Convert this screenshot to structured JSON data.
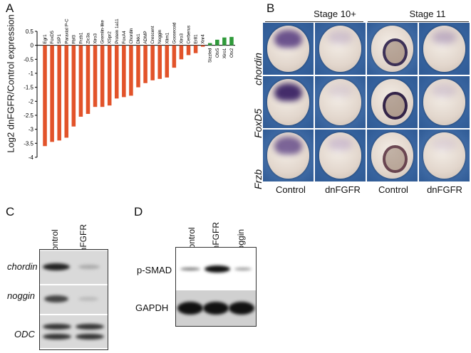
{
  "panels": {
    "a": "A",
    "b": "B",
    "c": "C",
    "d": "D"
  },
  "chart_data": {
    "type": "bar",
    "ylabel": "Log2 dnFGFR/Control expression",
    "ylim": [
      -4,
      0.5
    ],
    "yticks": [
      "0.5",
      "0",
      "-0.5",
      "-1",
      "-1.5",
      "-2",
      "-2.5",
      "-3",
      "-3.5",
      "-4"
    ],
    "categories": [
      "Egr1",
      "FoxD5",
      "SIP1",
      "Paraxial P-C",
      "Fbf3",
      "Frzb1",
      "Zic3a",
      "Xiro3",
      "Gremlin-like",
      "XSpr2",
      "Protein 1a11",
      "FoxA4",
      "Chordin",
      "Dkk1",
      "ADMP",
      "Crescent",
      "Noggin",
      "Xlim1",
      "Goosecoid",
      "Xiro3",
      "Cerberus",
      "Er81",
      "Xnr4",
      "Sizzled",
      "Otx5",
      "Xiro1",
      "Otx2"
    ],
    "values": [
      -3.6,
      -3.45,
      -3.4,
      -3.3,
      -2.9,
      -2.55,
      -2.45,
      -2.2,
      -2.2,
      -2.15,
      -1.9,
      -1.85,
      -1.8,
      -1.5,
      -1.35,
      -1.25,
      -1.2,
      -1.15,
      -0.8,
      -0.5,
      -0.35,
      -0.28,
      -0.05,
      0.08,
      0.2,
      0.28,
      0.3
    ],
    "colors": {
      "down": "#e2532a",
      "up": "#2f9a3a"
    }
  },
  "panel_b": {
    "stages": [
      "Stage 10+",
      "Stage 11"
    ],
    "rows": [
      "chordin",
      "FoxD5",
      "Frzb"
    ],
    "columns": [
      "Control",
      "dnFGFR",
      "Control",
      "dnFGFR"
    ]
  },
  "panel_c": {
    "lanes": [
      "Control",
      "dnFGFR"
    ],
    "rows": [
      "chordin",
      "noggin",
      "ODC"
    ]
  },
  "panel_d": {
    "lanes": [
      "Control",
      "dnFGFR",
      "noggin"
    ],
    "rows": [
      "p-SMAD",
      "GAPDH"
    ]
  }
}
